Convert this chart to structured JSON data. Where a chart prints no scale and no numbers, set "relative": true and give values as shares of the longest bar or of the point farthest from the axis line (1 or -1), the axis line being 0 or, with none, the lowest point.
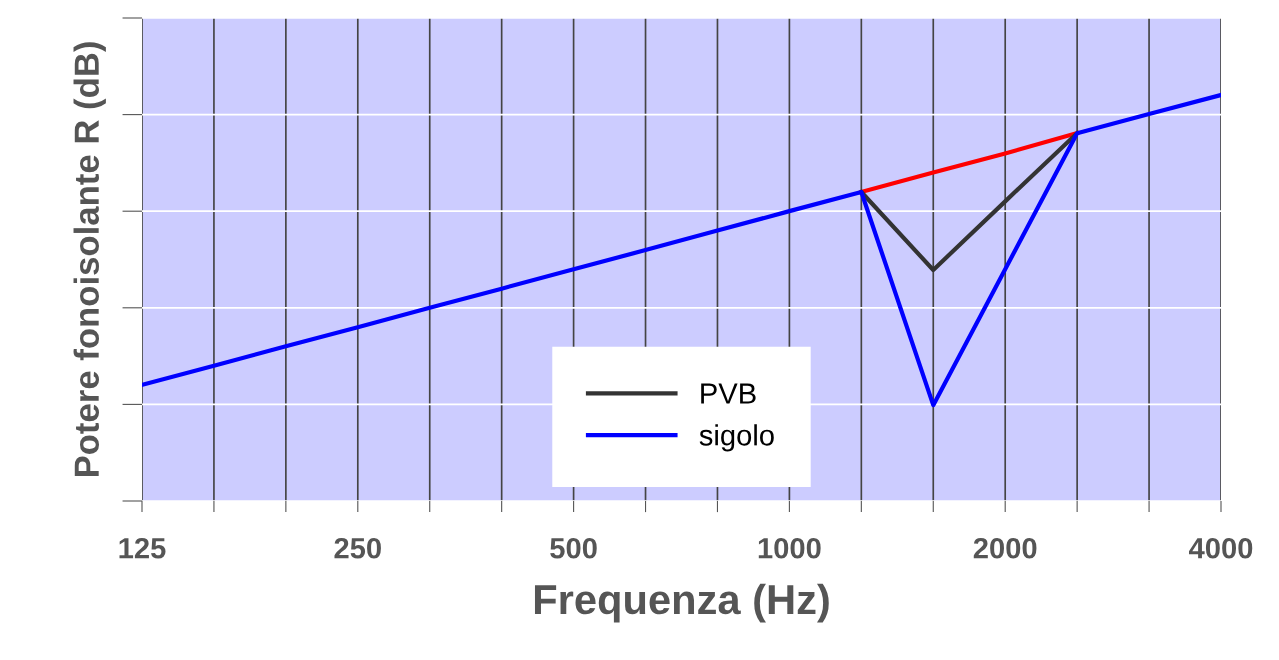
{
  "chart_data": {
    "type": "line",
    "xlabel": "Frequenza (Hz)",
    "ylabel": "Potere fonoisolante R (dB)",
    "categories": [
      "125",
      null,
      null,
      "250",
      null,
      null,
      "500",
      null,
      null,
      "1000",
      null,
      null,
      "2000",
      null,
      null,
      "4000"
    ],
    "relative": true,
    "series": [
      {
        "color": "#ff0000",
        "values": [
          null,
          null,
          null,
          null,
          null,
          null,
          null,
          null,
          null,
          null,
          0.761,
          0.809,
          0.856,
          0.906,
          null,
          null
        ]
      },
      {
        "name": "PVB",
        "color": "#333333",
        "values": [
          null,
          null,
          null,
          null,
          null,
          null,
          null,
          null,
          null,
          null,
          0.761,
          0.569,
          0.738,
          0.906,
          null,
          null
        ]
      },
      {
        "name": "sigolo",
        "color": "#0000ff",
        "values": [
          0.286,
          0.333,
          0.381,
          0.428,
          0.476,
          0.523,
          0.571,
          0.618,
          0.666,
          0.714,
          0.761,
          0.236,
          0.571,
          0.906,
          0.953,
          1
        ]
      }
    ],
    "grid": true,
    "legend": "bottom",
    "tick_labels": "x",
    "marker": "none",
    "line_style": "solid"
  }
}
